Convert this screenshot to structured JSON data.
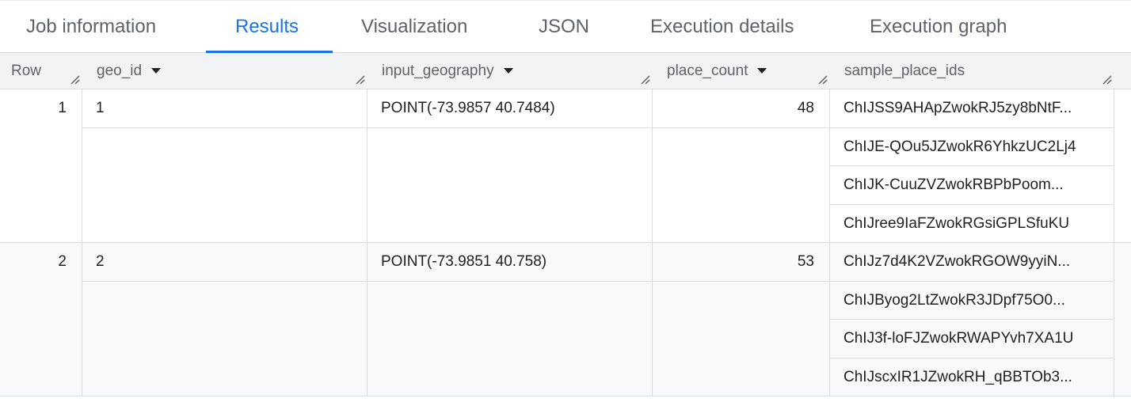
{
  "tabs": [
    {
      "label": "Job information"
    },
    {
      "label": "Results",
      "active": true
    },
    {
      "label": "Visualization"
    },
    {
      "label": "JSON"
    },
    {
      "label": "Execution details"
    },
    {
      "label": "Execution graph"
    }
  ],
  "columns": [
    {
      "label": "Row"
    },
    {
      "label": "geo_id",
      "sortable": true
    },
    {
      "label": "input_geography",
      "sortable": true
    },
    {
      "label": "place_count",
      "sortable": true
    },
    {
      "label": "sample_place_ids"
    }
  ],
  "rows": [
    {
      "row": "1",
      "geo_id": "1",
      "input_geography": "POINT(-73.9857 40.7484)",
      "place_count": "48",
      "sample_place_ids": [
        "ChIJSS9AHApZwokRJ5zy8bNtF...",
        "ChIJE-QOu5JZwokR6YhkzUC2Lj4",
        "ChIJK-CuuZVZwokRBPbPoom...",
        "ChIJree9IaFZwokRGsiGPLSfuKU"
      ]
    },
    {
      "row": "2",
      "geo_id": "2",
      "input_geography": "POINT(-73.9851 40.758)",
      "place_count": "53",
      "sample_place_ids": [
        "ChIJz7d4K2VZwokRGOW9yyiN...",
        "ChIJByog2LtZwokR3JDpf75O0...",
        "ChIJ3f-loFJZwokRWAPYvh7XA1U",
        "ChIJscxIR1JZwokRH_qBBTOb3..."
      ]
    }
  ],
  "colors": {
    "accent": "#1a73e8",
    "header_bg": "#f1f3f4",
    "alt_row_bg": "#f8f9fa"
  }
}
